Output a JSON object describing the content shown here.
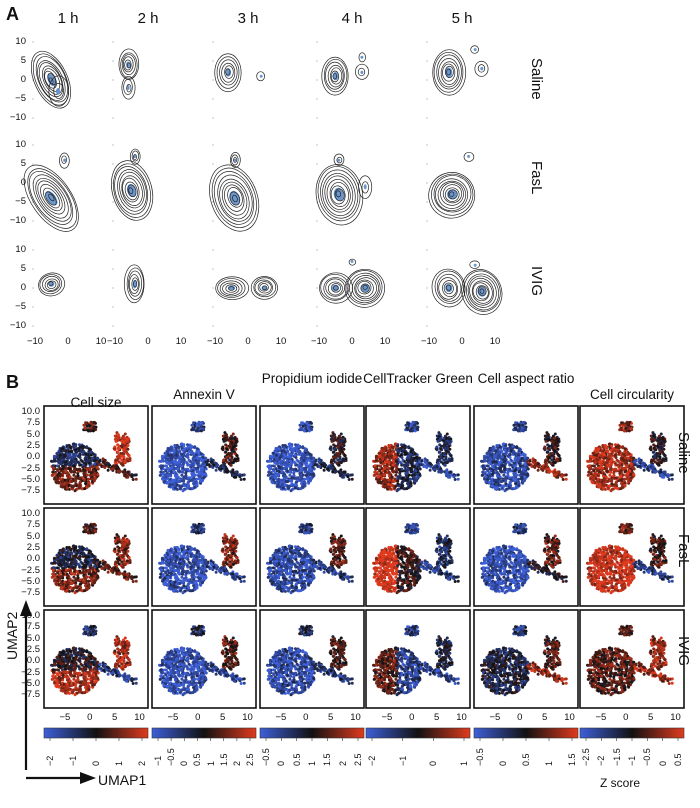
{
  "panel_a": {
    "letter": "A",
    "columns": [
      "1 h",
      "2 h",
      "3 h",
      "4 h",
      "5 h"
    ],
    "rows": [
      "Saline",
      "FasL",
      "IVIG"
    ],
    "y_ticks": [
      "10",
      "5",
      "0",
      "−5",
      "−10"
    ],
    "x_ticks": [
      "−10",
      "0",
      "10"
    ]
  },
  "panel_b": {
    "letter": "B",
    "markers": [
      "Cell size",
      "Annexin V",
      "Propidium iodide",
      "CellTracker Green",
      "Cell aspect ratio",
      "Cell circularity"
    ],
    "rows": [
      "Saline",
      "FasL",
      "IVIG"
    ],
    "y_ticks": [
      "10.0",
      "7.5",
      "5.0",
      "2.5",
      "0.0",
      "−2.5",
      "−5.0",
      "−7.5"
    ],
    "x_ticks": [
      "−5",
      "0",
      "5",
      "10"
    ],
    "y_axis_label": "UMAP2",
    "x_axis_label": "UMAP1",
    "colorbar_label": "Z score",
    "colorbar_ticks": [
      [
        "−2",
        "−1",
        "0",
        "1",
        "2"
      ],
      [
        "−1",
        "−0.5",
        "0",
        "0.5",
        "1",
        "1.5",
        "2",
        "2.5"
      ],
      [
        "−0.5",
        "0",
        "0.5",
        "1",
        "1.5",
        "2",
        "2.5"
      ],
      [
        "−2",
        "−1",
        "0",
        "1"
      ],
      [
        "−0.5",
        "0",
        "0.5",
        "1",
        "1.5"
      ],
      [
        "−2.5",
        "−2",
        "−1.5",
        "−1",
        "−0.5",
        "0",
        "0.5"
      ]
    ],
    "colors": {
      "low": "#3d5fd9",
      "mid": "#111111",
      "high": "#e03a1e",
      "low_light": "#8aa0ee",
      "high_light": "#f06a50"
    }
  }
}
